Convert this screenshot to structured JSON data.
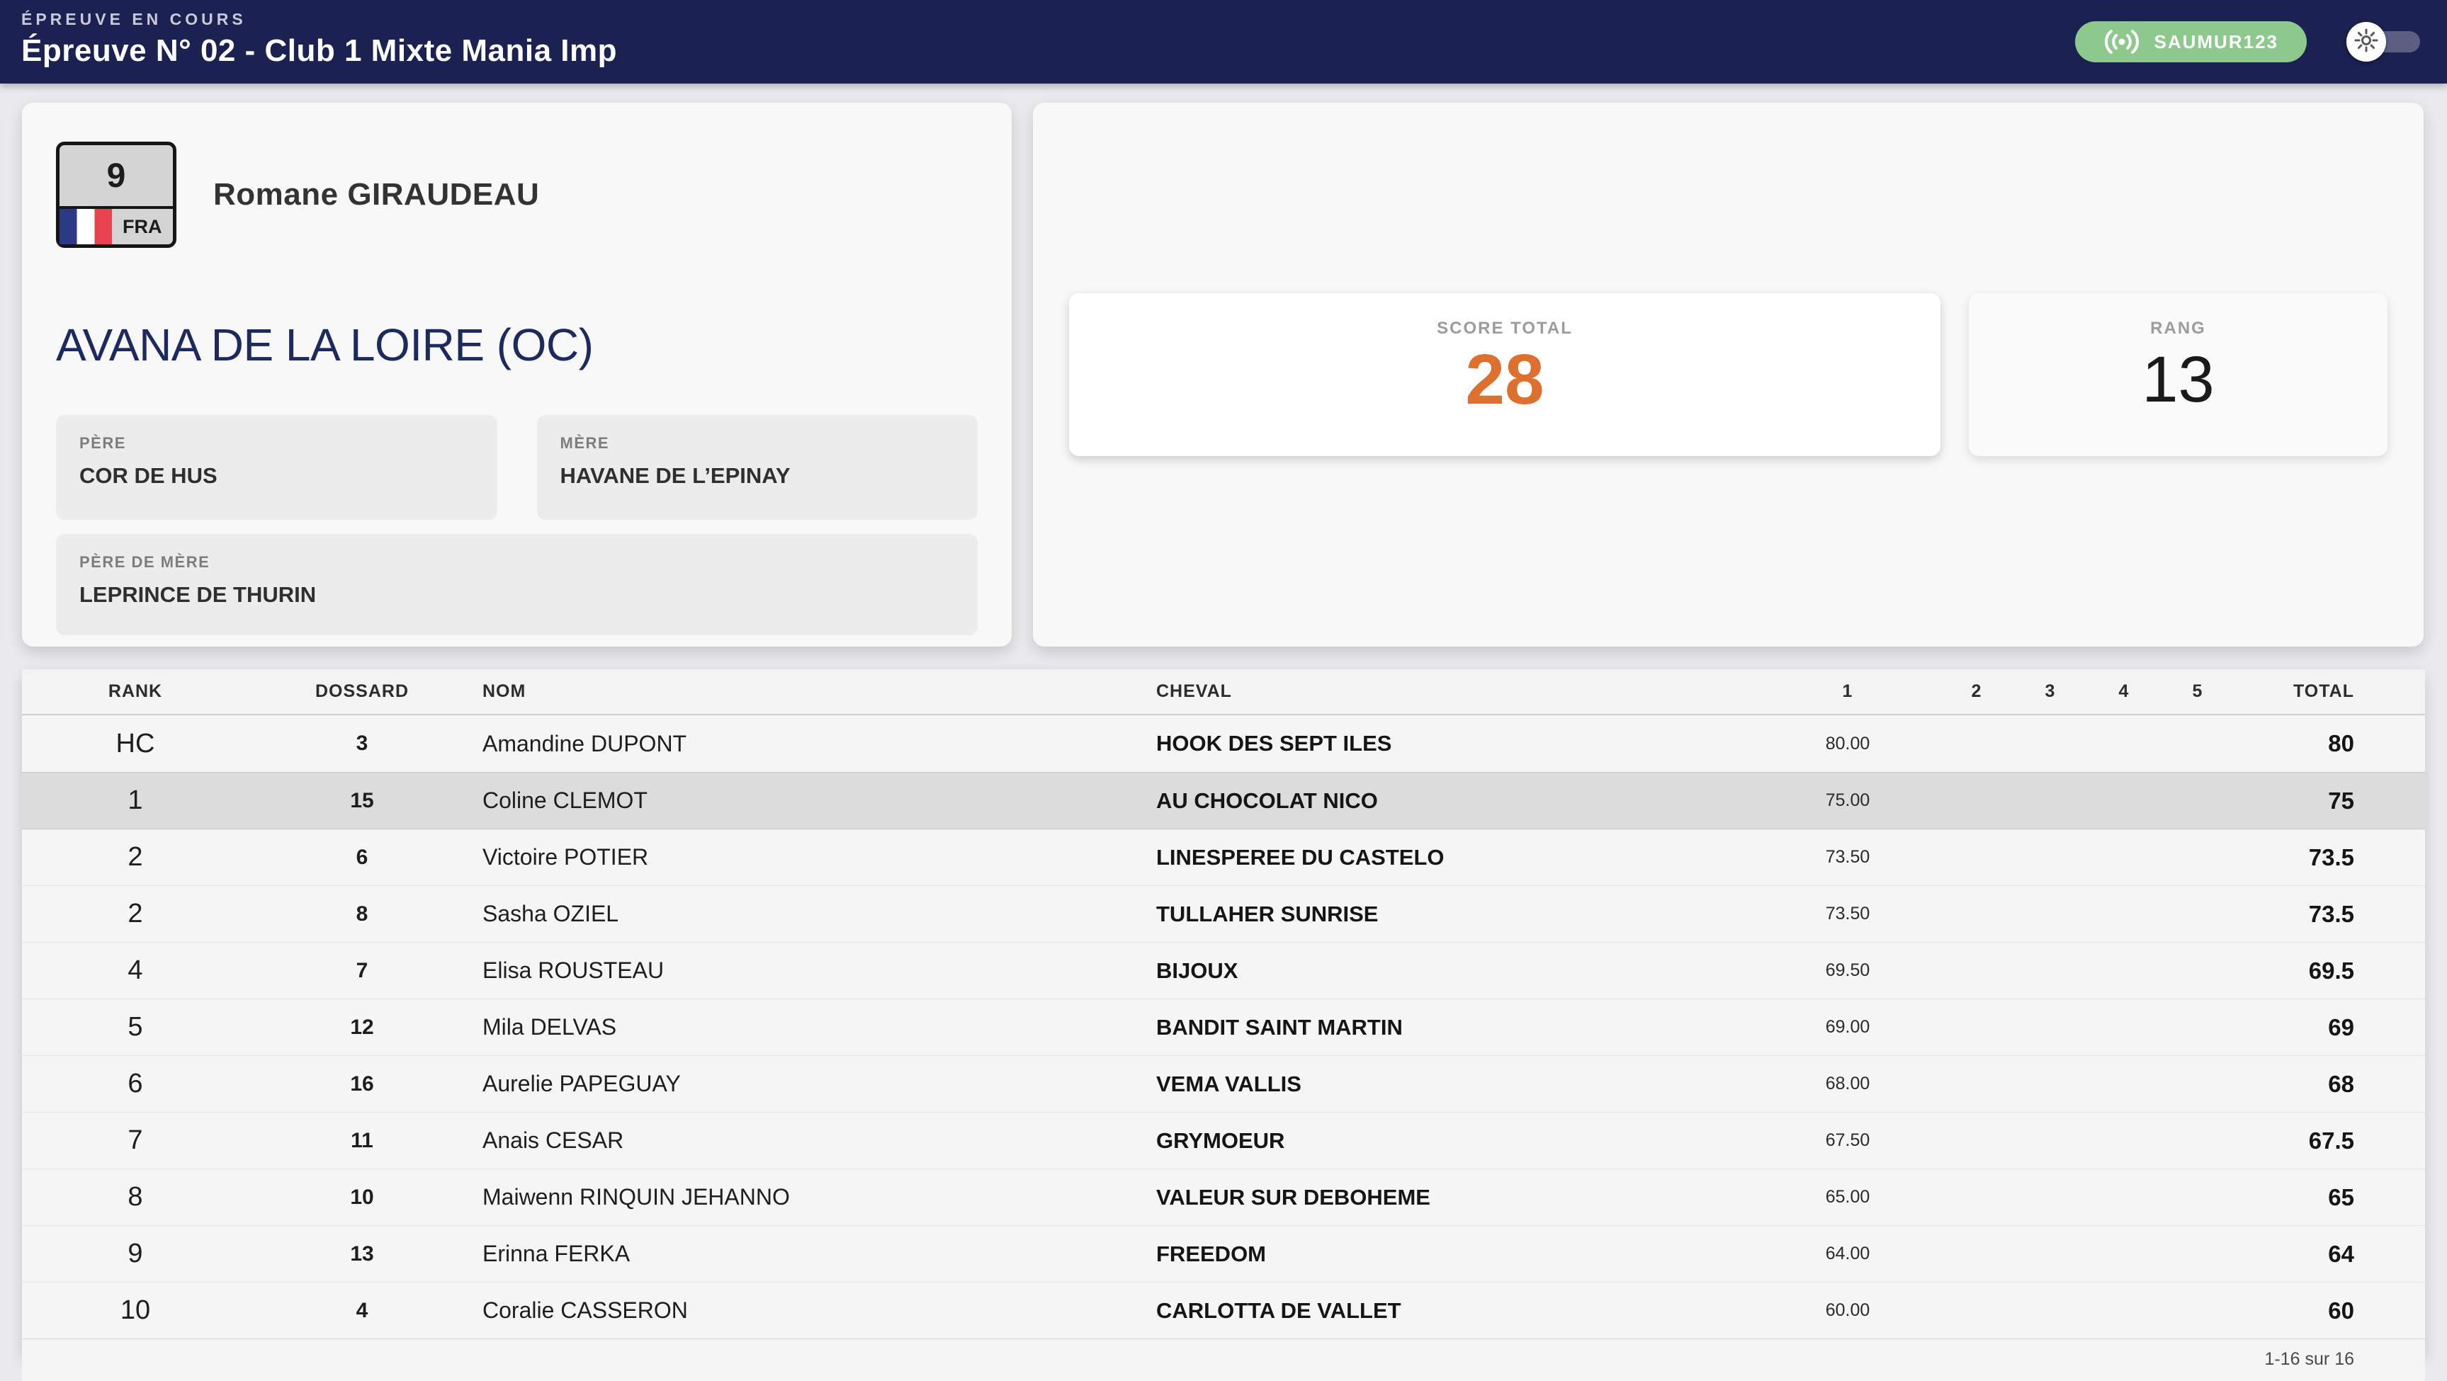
{
  "header": {
    "kicker": "ÉPREUVE EN COURS",
    "title": "Épreuve N° 02 - Club 1 Mixte Mania Imp",
    "badge": "SAUMUR123"
  },
  "icons": {
    "badge_icon": "broadcast-icon",
    "toggle_icon": "sun-icon",
    "flag_icon": "france-flag-icon"
  },
  "colors": {
    "navy": "#1b2150",
    "accent_orange": "#dd6f2f",
    "badge_green": "#8dc98d",
    "highlight_row": "#dcdcdc",
    "horse_name_blue": "#1d2a5e"
  },
  "current": {
    "bib": "9",
    "country": "FRA",
    "rider": "Romane GIRAUDEAU",
    "horse": "AVANA DE LA LOIRE (OC)",
    "pere_label": "PÈRE",
    "pere": "COR DE HUS",
    "mere_label": "MÈRE",
    "mere": "HAVANE DE L’EPINAY",
    "pere_de_mere_label": "PÈRE DE MÈRE",
    "pere_de_mere": "LEPRINCE DE THURIN"
  },
  "score": {
    "label": "SCORE TOTAL",
    "value": "28"
  },
  "rank": {
    "label": "RANG",
    "value": "13"
  },
  "table": {
    "columns": [
      "RANK",
      "DOSSARD",
      "NOM",
      "CHEVAL",
      "1",
      "2",
      "3",
      "4",
      "5",
      "TOTAL"
    ],
    "rows": [
      {
        "rank": "HC",
        "dossard": "3",
        "nom": "Amandine DUPONT",
        "cheval": "HOOK DES SEPT ILES",
        "s1": "80.00",
        "s2": "",
        "s3": "",
        "s4": "",
        "s5": "",
        "total": "80",
        "highlight": false
      },
      {
        "rank": "1",
        "dossard": "15",
        "nom": "Coline CLEMOT",
        "cheval": "AU CHOCOLAT NICO",
        "s1": "75.00",
        "s2": "",
        "s3": "",
        "s4": "",
        "s5": "",
        "total": "75",
        "highlight": true
      },
      {
        "rank": "2",
        "dossard": "6",
        "nom": "Victoire POTIER",
        "cheval": "LINESPEREE DU CASTELO",
        "s1": "73.50",
        "s2": "",
        "s3": "",
        "s4": "",
        "s5": "",
        "total": "73.5",
        "highlight": false
      },
      {
        "rank": "2",
        "dossard": "8",
        "nom": "Sasha OZIEL",
        "cheval": "TULLAHER SUNRISE",
        "s1": "73.50",
        "s2": "",
        "s3": "",
        "s4": "",
        "s5": "",
        "total": "73.5",
        "highlight": false
      },
      {
        "rank": "4",
        "dossard": "7",
        "nom": "Elisa ROUSTEAU",
        "cheval": "BIJOUX",
        "s1": "69.50",
        "s2": "",
        "s3": "",
        "s4": "",
        "s5": "",
        "total": "69.5",
        "highlight": false
      },
      {
        "rank": "5",
        "dossard": "12",
        "nom": "Mila DELVAS",
        "cheval": "BANDIT SAINT MARTIN",
        "s1": "69.00",
        "s2": "",
        "s3": "",
        "s4": "",
        "s5": "",
        "total": "69",
        "highlight": false
      },
      {
        "rank": "6",
        "dossard": "16",
        "nom": "Aurelie PAPEGUAY",
        "cheval": "VEMA VALLIS",
        "s1": "68.00",
        "s2": "",
        "s3": "",
        "s4": "",
        "s5": "",
        "total": "68",
        "highlight": false
      },
      {
        "rank": "7",
        "dossard": "11",
        "nom": "Anais CESAR",
        "cheval": "GRYMOEUR",
        "s1": "67.50",
        "s2": "",
        "s3": "",
        "s4": "",
        "s5": "",
        "total": "67.5",
        "highlight": false
      },
      {
        "rank": "8",
        "dossard": "10",
        "nom": "Maiwenn RINQUIN JEHANNO",
        "cheval": "VALEUR SUR DEBOHEME",
        "s1": "65.00",
        "s2": "",
        "s3": "",
        "s4": "",
        "s5": "",
        "total": "65",
        "highlight": false
      },
      {
        "rank": "9",
        "dossard": "13",
        "nom": "Erinna FERKA",
        "cheval": "FREEDOM",
        "s1": "64.00",
        "s2": "",
        "s3": "",
        "s4": "",
        "s5": "",
        "total": "64",
        "highlight": false
      },
      {
        "rank": "10",
        "dossard": "4",
        "nom": "Coralie CASSERON",
        "cheval": "CARLOTTA DE VALLET",
        "s1": "60.00",
        "s2": "",
        "s3": "",
        "s4": "",
        "s5": "",
        "total": "60",
        "highlight": false
      }
    ],
    "pagination": "1-16 sur 16"
  }
}
